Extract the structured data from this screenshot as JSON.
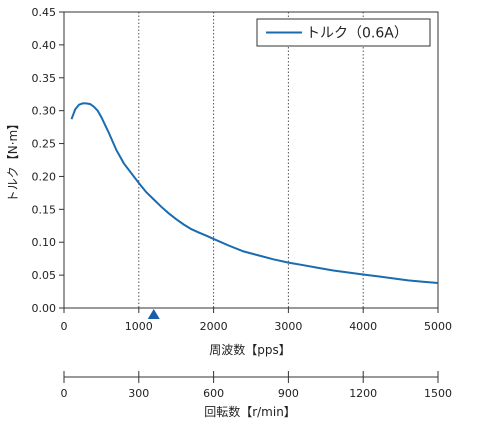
{
  "chart_data": {
    "type": "line",
    "x_axis": {
      "label": "周波数【pps】",
      "range": [
        0,
        5000
      ],
      "ticks": [
        0,
        1000,
        2000,
        3000,
        4000,
        5000
      ]
    },
    "y_axis": {
      "label": "トルク【N·m】",
      "range": [
        0,
        0.45
      ],
      "ticks": [
        "0.00",
        "0.05",
        "0.10",
        "0.15",
        "0.20",
        "0.25",
        "0.30",
        "0.35",
        "0.40",
        "0.45"
      ]
    },
    "secondary_x_axis": {
      "label": "回転数【r/min】",
      "range": [
        0,
        1500
      ],
      "ticks": [
        0,
        300,
        600,
        900,
        1200,
        1500
      ]
    },
    "marker": {
      "x": 1200,
      "shape": "triangle",
      "color": "#1a5ea8"
    },
    "grid": {
      "vertical": true,
      "horizontal": false,
      "style": "dotted"
    },
    "legend": {
      "position": "top-right",
      "entries": [
        "トルク（0.6A）"
      ]
    },
    "series": [
      {
        "name": "トルク（0.6A）",
        "color": "#1a6bb0",
        "x": [
          100,
          150,
          200,
          250,
          300,
          350,
          400,
          450,
          500,
          600,
          700,
          800,
          900,
          1000,
          1100,
          1200,
          1300,
          1400,
          1500,
          1600,
          1700,
          1800,
          1900,
          2000,
          2200,
          2400,
          2600,
          2800,
          3000,
          3200,
          3400,
          3600,
          3800,
          4000,
          4200,
          4400,
          4600,
          4800,
          5000
        ],
        "y": [
          0.287,
          0.302,
          0.309,
          0.311,
          0.311,
          0.31,
          0.306,
          0.3,
          0.29,
          0.266,
          0.24,
          0.22,
          0.205,
          0.19,
          0.176,
          0.165,
          0.154,
          0.144,
          0.135,
          0.127,
          0.12,
          0.115,
          0.11,
          0.105,
          0.095,
          0.086,
          0.08,
          0.074,
          0.069,
          0.065,
          0.061,
          0.057,
          0.054,
          0.051,
          0.048,
          0.045,
          0.042,
          0.04,
          0.038
        ]
      }
    ]
  }
}
